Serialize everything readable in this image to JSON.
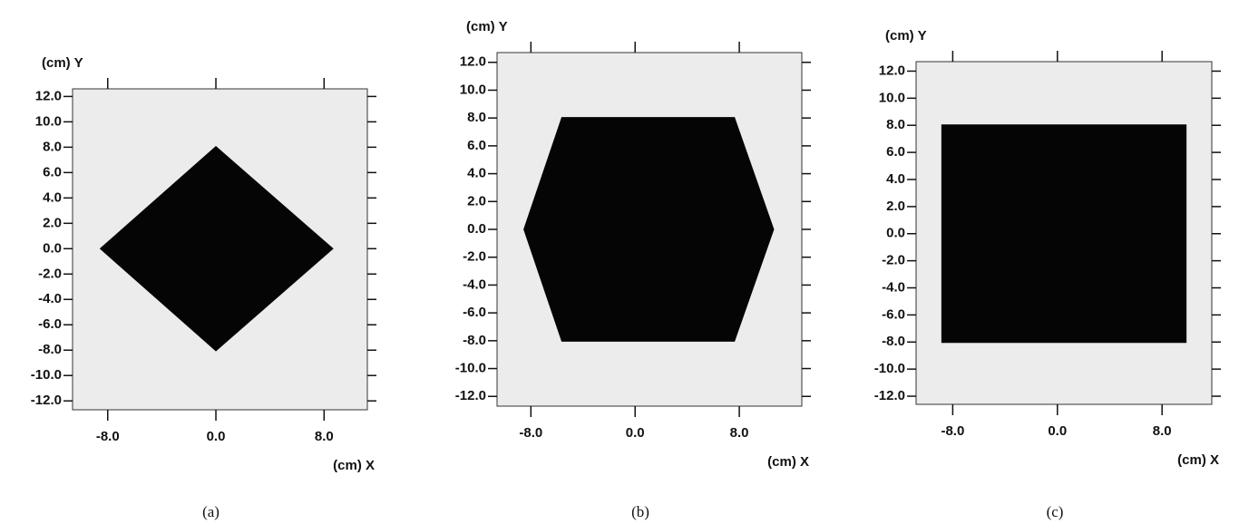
{
  "chart_data": [
    {
      "type": "polygon",
      "caption": "(a)",
      "x_label": "(cm) X",
      "y_label": "(cm) Y",
      "color": "#050505",
      "background": "#ececec",
      "x": [
        -8.5,
        0,
        8.6,
        0
      ],
      "values": [
        0,
        8,
        0,
        -8
      ],
      "xlim": [
        -10.6,
        11.2
      ],
      "ylim": [
        -12.7,
        12.6
      ],
      "xticks": [
        {
          "value": -8,
          "label": "-8.0"
        },
        {
          "value": 0,
          "label": "0.0"
        },
        {
          "value": 8,
          "label": "8.0"
        }
      ],
      "yticks": [
        {
          "value": 12,
          "label": "12.0"
        },
        {
          "value": 10,
          "label": "10.0"
        },
        {
          "value": 8,
          "label": "8.0"
        },
        {
          "value": 6,
          "label": "6.0"
        },
        {
          "value": 4,
          "label": "4.0"
        },
        {
          "value": 2,
          "label": "2.0"
        },
        {
          "value": 0,
          "label": "0.0"
        },
        {
          "value": -2,
          "label": "-2.0"
        },
        {
          "value": -4,
          "label": "-4.0"
        },
        {
          "value": -6,
          "label": "-6.0"
        },
        {
          "value": -8,
          "label": "-8.0"
        },
        {
          "value": -10,
          "label": "-10.0"
        },
        {
          "value": -12,
          "label": "-12.0"
        }
      ]
    },
    {
      "type": "polygon",
      "caption": "(b)",
      "x_label": "(cm) X",
      "y_label": "(cm) Y",
      "color": "#050505",
      "background": "#ececec",
      "x": [
        -8.5,
        -5.6,
        7.6,
        10.6,
        7.6,
        -5.6
      ],
      "values": [
        0,
        8,
        8,
        0,
        -8,
        -8
      ],
      "xlim": [
        -10.6,
        12.8
      ],
      "ylim": [
        -12.7,
        12.7
      ],
      "xticks": [
        {
          "value": -8,
          "label": "-8.0"
        },
        {
          "value": 0,
          "label": "0.0"
        },
        {
          "value": 8,
          "label": "8.0"
        }
      ],
      "yticks": [
        {
          "value": 12,
          "label": "12.0"
        },
        {
          "value": 10,
          "label": "10.0"
        },
        {
          "value": 8,
          "label": "8.0"
        },
        {
          "value": 6,
          "label": "6.0"
        },
        {
          "value": 4,
          "label": "4.0"
        },
        {
          "value": 2,
          "label": "2.0"
        },
        {
          "value": 0,
          "label": "0.0"
        },
        {
          "value": -2,
          "label": "-2.0"
        },
        {
          "value": -4,
          "label": "-4.0"
        },
        {
          "value": -6,
          "label": "-6.0"
        },
        {
          "value": -8,
          "label": "-8.0"
        },
        {
          "value": -10,
          "label": "-10.0"
        },
        {
          "value": -12,
          "label": "-12.0"
        }
      ]
    },
    {
      "type": "polygon",
      "caption": "(c)",
      "x_label": "(cm) X",
      "y_label": "(cm) Y",
      "color": "#050505",
      "background": "#ececec",
      "x": [
        -8.8,
        9.8,
        9.8,
        -8.8
      ],
      "values": [
        8,
        8,
        -8,
        -8
      ],
      "xlim": [
        -10.8,
        11.8
      ],
      "ylim": [
        -12.6,
        12.7
      ],
      "xticks": [
        {
          "value": -8,
          "label": "-8.0"
        },
        {
          "value": 0,
          "label": "0.0"
        },
        {
          "value": 8,
          "label": "8.0"
        }
      ],
      "yticks": [
        {
          "value": 12,
          "label": "12.0"
        },
        {
          "value": 10,
          "label": "10.0"
        },
        {
          "value": 8,
          "label": "8.0"
        },
        {
          "value": 6,
          "label": "6.0"
        },
        {
          "value": 4,
          "label": "4.0"
        },
        {
          "value": 2,
          "label": "2.0"
        },
        {
          "value": 0,
          "label": "0.0"
        },
        {
          "value": -2,
          "label": "-2.0"
        },
        {
          "value": -4,
          "label": "-4.0"
        },
        {
          "value": -6,
          "label": "-6.0"
        },
        {
          "value": -8,
          "label": "-8.0"
        },
        {
          "value": -10,
          "label": "-10.0"
        },
        {
          "value": -12,
          "label": "-12.0"
        }
      ]
    }
  ]
}
